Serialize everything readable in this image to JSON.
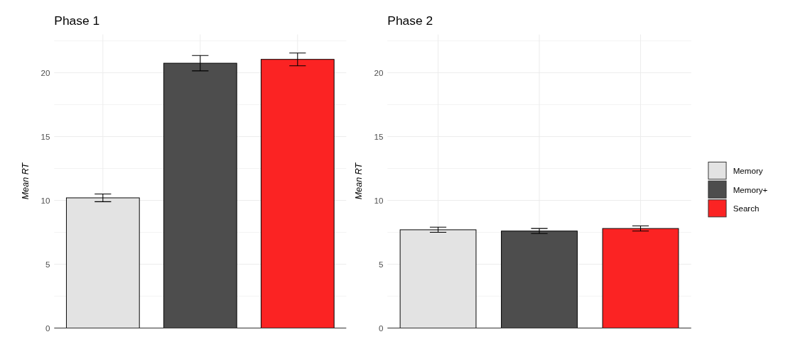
{
  "chart_data": [
    {
      "type": "bar",
      "title": "Phase 1",
      "ylabel": "Mean RT",
      "categories": [
        null,
        null,
        null
      ],
      "series": [
        {
          "color": "#e3e3e3",
          "values": [
            10.2,
            null,
            null
          ],
          "errors": [
            0.3,
            null,
            null
          ]
        },
        {
          "color": "#4d4d4d",
          "values": [
            null,
            20.75,
            null
          ],
          "errors": [
            null,
            0.6,
            null
          ]
        },
        {
          "color": "#fb2323",
          "values": [
            null,
            null,
            21.05
          ],
          "errors": [
            null,
            null,
            0.5
          ]
        }
      ],
      "ylim": [
        0,
        23
      ],
      "yticks": [
        0,
        {
          "value": 2.5,
          "label": null
        },
        5,
        {
          "value": 7.5,
          "label": null
        },
        10,
        {
          "value": 12.5,
          "label": null
        },
        15,
        {
          "value": 17.5,
          "label": null
        },
        20,
        {
          "value": 22.5,
          "label": null
        }
      ],
      "grid": true,
      "legend": false
    },
    {
      "type": "bar",
      "title": "Phase 2",
      "ylabel": "Mean RT",
      "categories": [
        null,
        null,
        null
      ],
      "series": [
        {
          "name": "Memory",
          "color": "#e3e3e3",
          "values": [
            7.7,
            null,
            null
          ],
          "errors": [
            0.2,
            null,
            null
          ]
        },
        {
          "name": "Memory+",
          "color": "#4d4d4d",
          "values": [
            null,
            7.6,
            null
          ],
          "errors": [
            null,
            0.2,
            null
          ]
        },
        {
          "name": "Search",
          "color": "#fb2323",
          "values": [
            null,
            null,
            7.8
          ],
          "errors": [
            null,
            null,
            0.2
          ]
        }
      ],
      "ylim": [
        0,
        23
      ],
      "yticks": [
        0,
        {
          "value": 2.5,
          "label": null
        },
        5,
        {
          "value": 7.5,
          "label": null
        },
        10,
        {
          "value": 12.5,
          "label": null
        },
        15,
        {
          "value": 17.5,
          "label": null
        },
        20,
        {
          "value": 22.5,
          "label": null
        }
      ],
      "grid": true,
      "legend": "right"
    }
  ]
}
